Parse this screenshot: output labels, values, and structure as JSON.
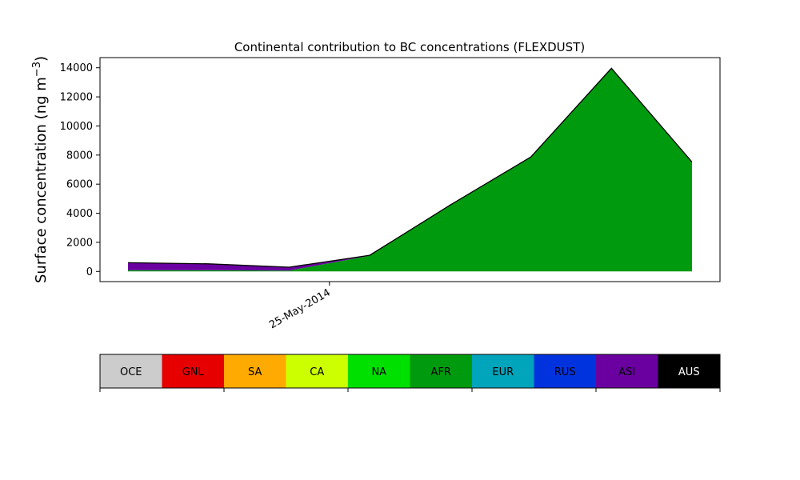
{
  "chart_data": {
    "type": "area",
    "title": "Continental contribution to BC concentrations (FLEXDUST)",
    "ylabel": "Surface concentration (ng m",
    "ylabel_superscript": "−3",
    "ylabel_close": ")",
    "xlabel": "",
    "ylim": [
      -700,
      14700
    ],
    "yticks": [
      0,
      2000,
      4000,
      6000,
      8000,
      10000,
      12000,
      14000
    ],
    "xtick_label": "25-May-2014",
    "xtick_index": 2.5,
    "n_points": 8,
    "grid": false,
    "stacked": true,
    "series": [
      {
        "name": "AFR",
        "color": "#009a0e",
        "values": [
          80,
          80,
          60,
          1080,
          4550,
          7850,
          13950,
          7500
        ]
      },
      {
        "name": "ASI",
        "color": "#6a00a0",
        "values": [
          520,
          440,
          230,
          30,
          20,
          20,
          20,
          20
        ]
      }
    ],
    "legend_bar": [
      {
        "name": "OCE",
        "color": "#cccccc",
        "text_color": "#000000"
      },
      {
        "name": "GNL",
        "color": "#e60000",
        "text_color": "#000000"
      },
      {
        "name": "SA",
        "color": "#ffaa00",
        "text_color": "#000000"
      },
      {
        "name": "CA",
        "color": "#ccff00",
        "text_color": "#000000"
      },
      {
        "name": "NA",
        "color": "#00e000",
        "text_color": "#000000"
      },
      {
        "name": "AFR",
        "color": "#009a0e",
        "text_color": "#000000"
      },
      {
        "name": "EUR",
        "color": "#00a4bb",
        "text_color": "#000000"
      },
      {
        "name": "RUS",
        "color": "#0033dd",
        "text_color": "#000000"
      },
      {
        "name": "ASI",
        "color": "#6a00a0",
        "text_color": "#000000"
      },
      {
        "name": "AUS",
        "color": "#000000",
        "text_color": "#ffffff"
      }
    ]
  }
}
